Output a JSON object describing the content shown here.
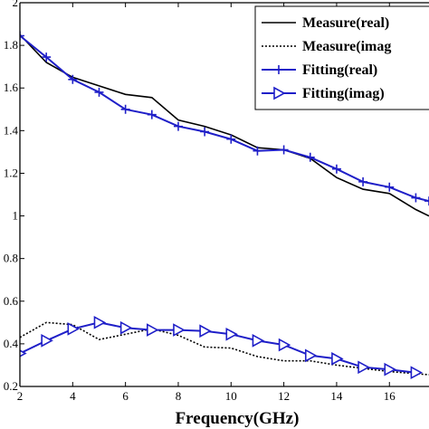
{
  "chart_data": {
    "type": "line",
    "title": "",
    "xlabel": "Frequency(GHz)",
    "ylabel": "",
    "xlim": [
      2,
      17.5
    ],
    "ylim": [
      0.2,
      2.0
    ],
    "xticks": [
      2,
      4,
      6,
      8,
      10,
      12,
      14,
      16
    ],
    "yticks": [
      0.2,
      0.4,
      0.6,
      0.8,
      1.0,
      1.2,
      1.4,
      1.6,
      1.8,
      2.0
    ],
    "xtick_labels": [
      "2",
      "4",
      "6",
      "8",
      "10",
      "12",
      "14",
      "16"
    ],
    "ytick_labels": [
      "0.2",
      "0.4",
      "0.6",
      "0.8",
      "1",
      "1.2",
      "1.4",
      "1.6",
      "1.8",
      "2"
    ],
    "grid": false,
    "legend_position": "top-right",
    "series": [
      {
        "name": "Measure(real)",
        "color": "#000000",
        "line": "solid",
        "marker": "none",
        "x": [
          2,
          3,
          4,
          5,
          6,
          7,
          8,
          9,
          10,
          11,
          12,
          13,
          14,
          15,
          16,
          17,
          17.5
        ],
        "y": [
          1.85,
          1.72,
          1.65,
          1.61,
          1.57,
          1.555,
          1.45,
          1.42,
          1.38,
          1.32,
          1.31,
          1.27,
          1.18,
          1.125,
          1.105,
          1.03,
          1.0
        ]
      },
      {
        "name": "Measure(imag",
        "color": "#000000",
        "line": "dotted",
        "marker": "none",
        "x": [
          2,
          3,
          4,
          5,
          6,
          7,
          8,
          9,
          10,
          11,
          12,
          13,
          14,
          15,
          16,
          17,
          17.5
        ],
        "y": [
          0.43,
          0.5,
          0.49,
          0.42,
          0.445,
          0.47,
          0.44,
          0.385,
          0.38,
          0.34,
          0.32,
          0.32,
          0.3,
          0.285,
          0.27,
          0.26,
          0.255
        ]
      },
      {
        "name": "Fitting(real)",
        "color": "#1f1fc8",
        "line": "solid",
        "marker": "plus",
        "x": [
          2,
          3,
          4,
          5,
          6,
          7,
          8,
          9,
          10,
          11,
          12,
          13,
          14,
          15,
          16,
          17,
          17.5
        ],
        "y": [
          1.845,
          1.745,
          1.64,
          1.58,
          1.5,
          1.475,
          1.42,
          1.395,
          1.36,
          1.305,
          1.31,
          1.275,
          1.22,
          1.16,
          1.135,
          1.085,
          1.07
        ]
      },
      {
        "name": "Fitting(imag)",
        "color": "#1f1fc8",
        "line": "solid",
        "marker": "triangle-right",
        "x": [
          2,
          3,
          4,
          5,
          6,
          7,
          8,
          9,
          10,
          11,
          12,
          13,
          14,
          15,
          16,
          17
        ],
        "y": [
          0.355,
          0.415,
          0.47,
          0.5,
          0.475,
          0.465,
          0.465,
          0.46,
          0.445,
          0.415,
          0.395,
          0.345,
          0.33,
          0.29,
          0.28,
          0.265
        ]
      }
    ]
  }
}
